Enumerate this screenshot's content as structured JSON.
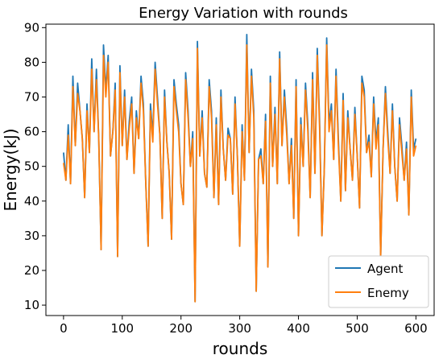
{
  "chart_data": {
    "type": "line",
    "title": "Energy Variation with rounds",
    "xlabel": "rounds",
    "ylabel": "Energy(kJ)",
    "xlim": [
      -30,
      631
    ],
    "ylim": [
      7,
      91
    ],
    "xticks": [
      0,
      100,
      200,
      300,
      400,
      500,
      600
    ],
    "yticks": [
      10,
      20,
      30,
      40,
      50,
      60,
      70,
      80,
      90
    ],
    "grid": false,
    "legend_position": "bottom-right",
    "x": [
      0,
      4,
      8,
      12,
      16,
      20,
      24,
      28,
      32,
      36,
      40,
      44,
      48,
      52,
      56,
      60,
      64,
      68,
      72,
      76,
      80,
      84,
      88,
      92,
      96,
      100,
      104,
      108,
      112,
      116,
      120,
      124,
      128,
      132,
      136,
      140,
      144,
      148,
      152,
      156,
      160,
      164,
      168,
      172,
      176,
      180,
      184,
      188,
      192,
      196,
      200,
      204,
      208,
      212,
      216,
      220,
      224,
      228,
      232,
      236,
      240,
      244,
      248,
      252,
      256,
      260,
      264,
      268,
      272,
      276,
      280,
      284,
      288,
      292,
      296,
      300,
      304,
      308,
      312,
      316,
      320,
      324,
      328,
      332,
      336,
      340,
      344,
      348,
      352,
      356,
      360,
      364,
      368,
      372,
      376,
      380,
      384,
      388,
      392,
      396,
      400,
      404,
      408,
      412,
      416,
      420,
      424,
      428,
      432,
      436,
      440,
      444,
      448,
      452,
      456,
      460,
      464,
      468,
      472,
      476,
      480,
      484,
      488,
      492,
      496,
      500,
      504,
      508,
      512,
      516,
      520,
      524,
      528,
      532,
      536,
      540,
      544,
      548,
      552,
      556,
      560,
      564,
      568,
      572,
      576,
      580,
      584,
      588,
      592,
      596,
      600
    ],
    "series": [
      {
        "name": "Agent",
        "color": "#1f77b4",
        "values": [
          54,
          46,
          62,
          45,
          76,
          56,
          74,
          66,
          58,
          41,
          68,
          54,
          81,
          60,
          78,
          58,
          26,
          85,
          72,
          82,
          53,
          60,
          74,
          24,
          79,
          56,
          72,
          52,
          63,
          70,
          48,
          66,
          58,
          76,
          68,
          45,
          27,
          68,
          59,
          80,
          70,
          59,
          35,
          72,
          57,
          48,
          29,
          75,
          68,
          62,
          45,
          39,
          77,
          66,
          50,
          60,
          11,
          86,
          53,
          66,
          48,
          44,
          75,
          66,
          41,
          64,
          39,
          72,
          55,
          46,
          61,
          58,
          42,
          70,
          53,
          27,
          62,
          46,
          88,
          54,
          78,
          66,
          14,
          52,
          55,
          45,
          65,
          21,
          76,
          50,
          67,
          45,
          83,
          56,
          72,
          61,
          45,
          58,
          35,
          75,
          30,
          64,
          50,
          74,
          62,
          41,
          77,
          48,
          84,
          63,
          30,
          49,
          87,
          62,
          68,
          52,
          78,
          58,
          40,
          71,
          43,
          66,
          55,
          46,
          67,
          53,
          38,
          76,
          72,
          54,
          59,
          47,
          70,
          57,
          64,
          24,
          55,
          73,
          60,
          48,
          68,
          50,
          40,
          64,
          56,
          46,
          57,
          36,
          72,
          55,
          58
        ]
      },
      {
        "name": "Enemy",
        "color": "#ff7f0e",
        "values": [
          51,
          46,
          59,
          45,
          73,
          56,
          71,
          66,
          58,
          41,
          66,
          54,
          78,
          60,
          75,
          58,
          26,
          82,
          70,
          80,
          53,
          60,
          72,
          24,
          77,
          56,
          70,
          52,
          61,
          68,
          48,
          64,
          58,
          74,
          66,
          45,
          27,
          66,
          57,
          78,
          68,
          59,
          35,
          70,
          57,
          48,
          29,
          73,
          66,
          60,
          45,
          39,
          75,
          64,
          50,
          58,
          11,
          84,
          53,
          64,
          48,
          44,
          73,
          64,
          41,
          62,
          39,
          70,
          55,
          46,
          59,
          58,
          42,
          68,
          53,
          27,
          60,
          46,
          85,
          54,
          76,
          64,
          14,
          52,
          53,
          45,
          63,
          21,
          74,
          50,
          65,
          45,
          81,
          56,
          70,
          59,
          45,
          56,
          35,
          73,
          30,
          62,
          50,
          72,
          60,
          41,
          75,
          48,
          82,
          61,
          30,
          49,
          85,
          60,
          66,
          52,
          76,
          56,
          40,
          69,
          43,
          64,
          55,
          46,
          65,
          53,
          38,
          74,
          70,
          54,
          57,
          47,
          68,
          55,
          62,
          24,
          55,
          71,
          58,
          48,
          66,
          50,
          40,
          62,
          54,
          46,
          55,
          36,
          70,
          53,
          56
        ]
      }
    ]
  }
}
